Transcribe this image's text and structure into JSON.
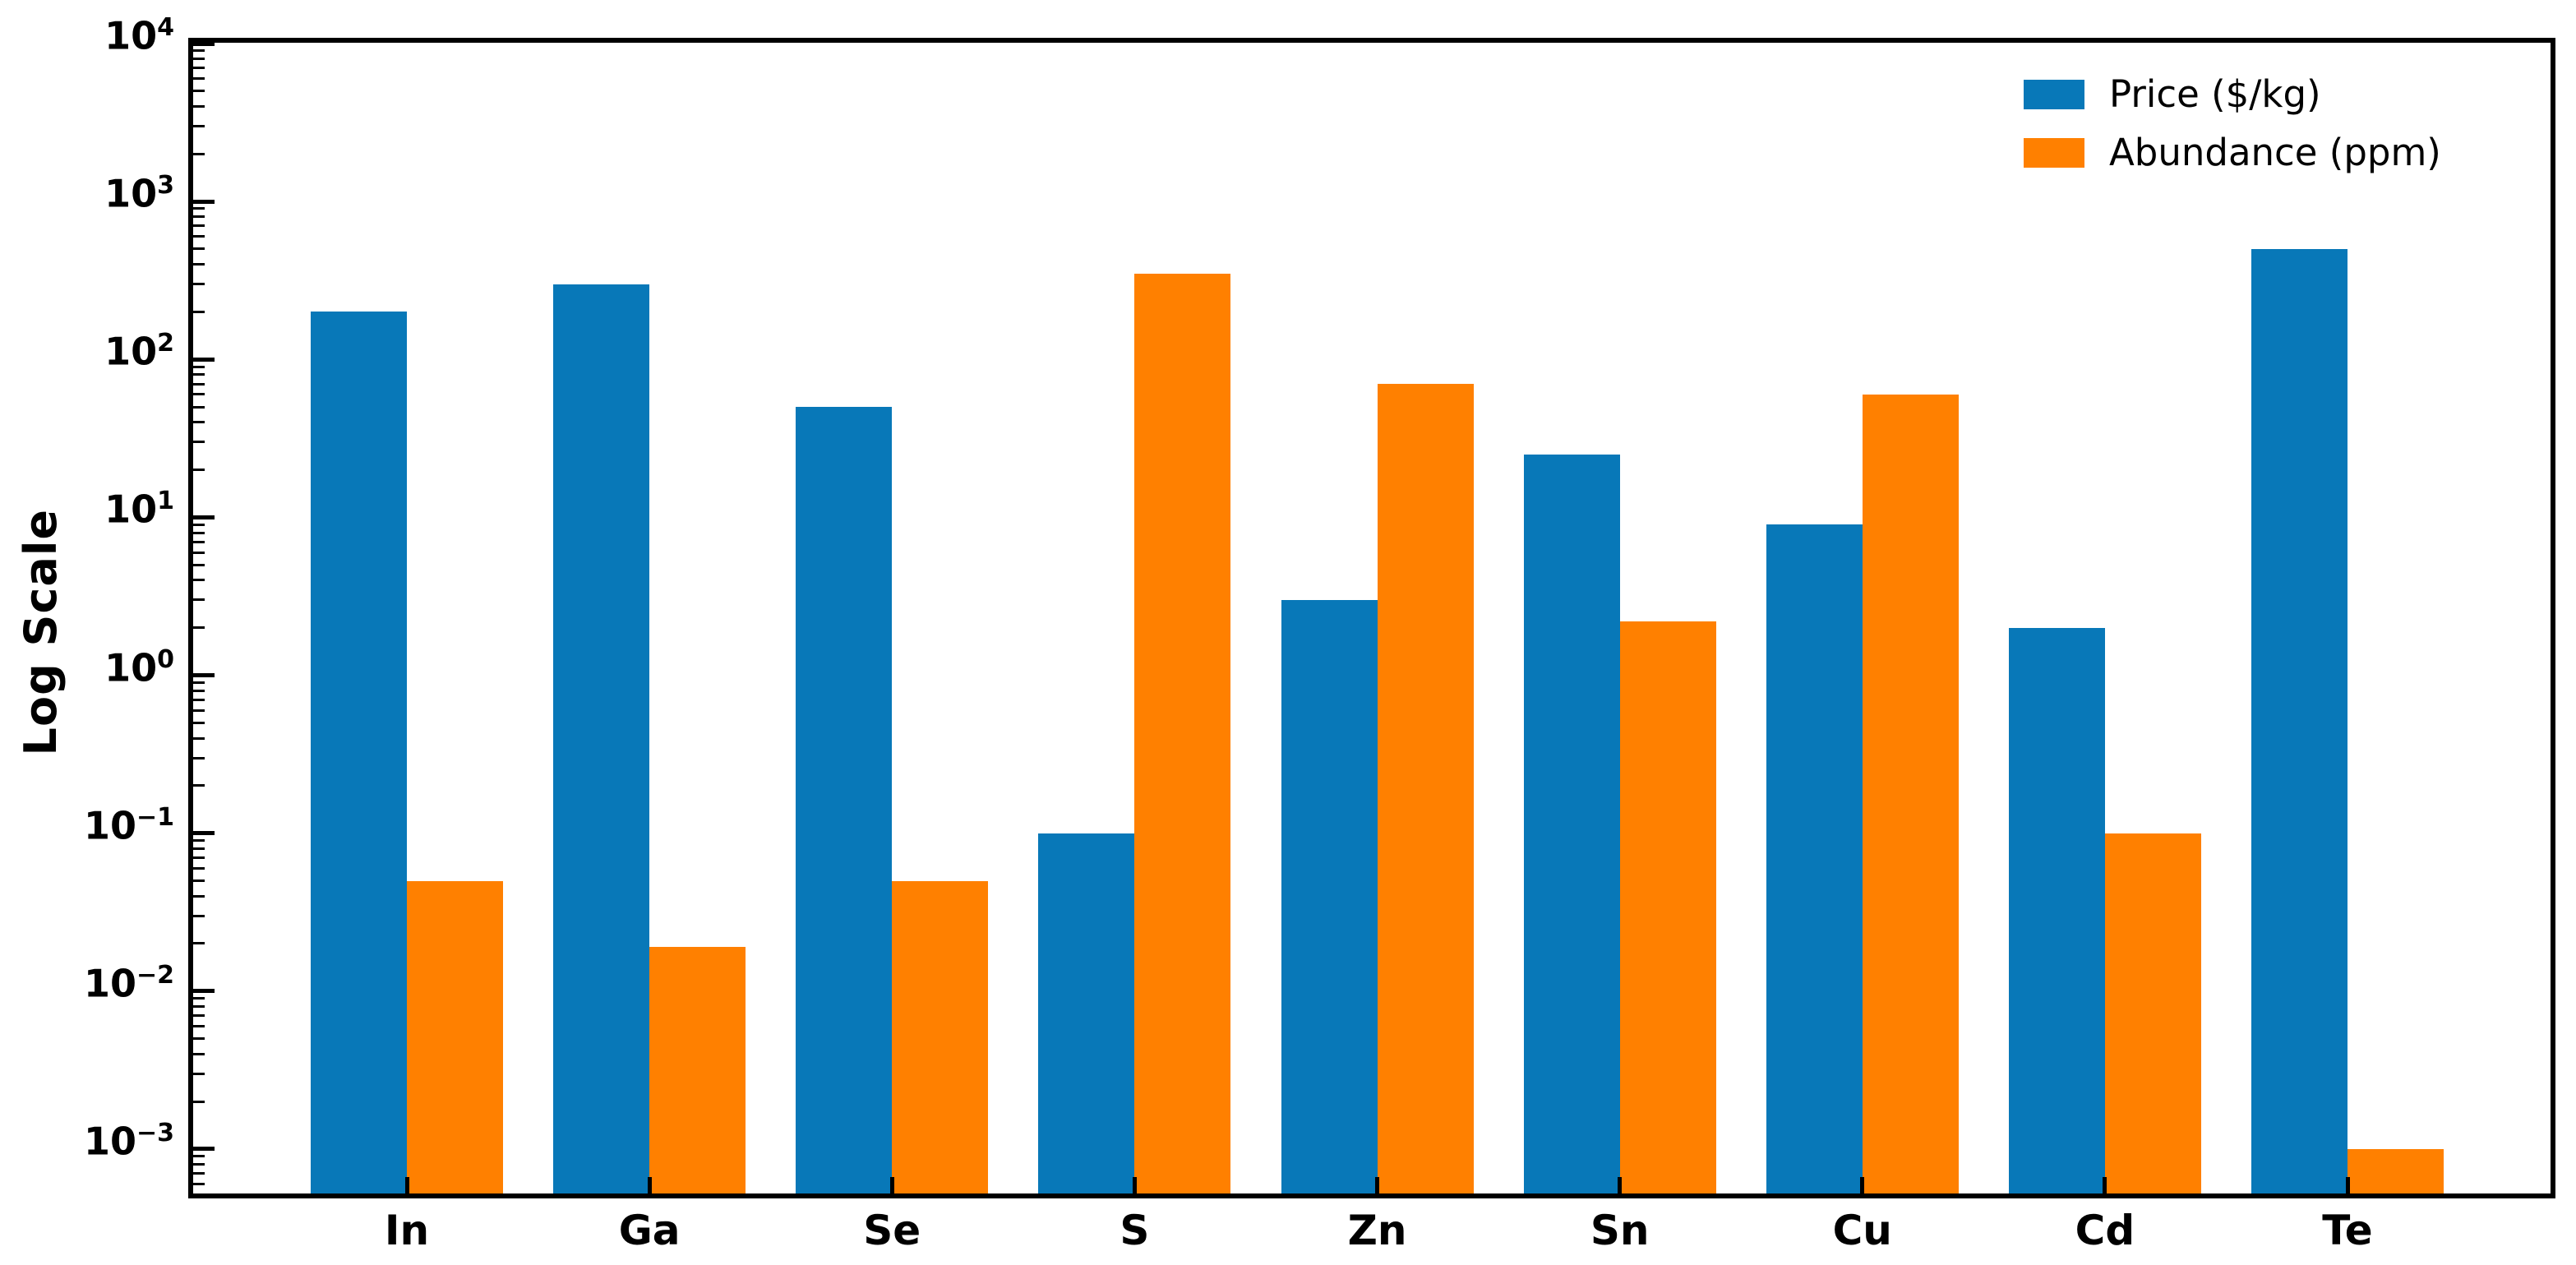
{
  "figure": {
    "background": "#ffffff"
  },
  "chart_data": {
    "type": "bar",
    "title": "",
    "xlabel": "",
    "ylabel": "Log Scale",
    "yscale": "log",
    "ylim": [
      "5.2e-4",
      "1.0e4"
    ],
    "grid": false,
    "legend_position": "upper right",
    "categories": [
      "In",
      "Ga",
      "Se",
      "S",
      "Zn",
      "Sn",
      "Cu",
      "Cd",
      "Te"
    ],
    "series": [
      {
        "name": "Price ($/kg)",
        "color": "#0878b8",
        "values": [
          200,
          300,
          50,
          0.1,
          3,
          25,
          9,
          2,
          500
        ]
      },
      {
        "name": "Abundance (ppm)",
        "color": "#ff8000",
        "values": [
          0.05,
          0.019,
          0.05,
          350,
          70,
          2.2,
          60,
          0.1,
          0.001
        ]
      }
    ],
    "y_ticks": [
      {
        "base": "10",
        "exp": "4",
        "e": 4
      },
      {
        "base": "10",
        "exp": "3",
        "e": 3
      },
      {
        "base": "10",
        "exp": "2",
        "e": 2
      },
      {
        "base": "10",
        "exp": "1",
        "e": 1
      },
      {
        "base": "10",
        "exp": "0",
        "e": 0
      },
      {
        "base": "10",
        "exp": "−1",
        "e": -1
      },
      {
        "base": "10",
        "exp": "−2",
        "e": -2
      },
      {
        "base": "10",
        "exp": "−3",
        "e": -3
      }
    ]
  },
  "legend": {
    "items": [
      {
        "label": "Price ($/kg)",
        "color": "#0878b8"
      },
      {
        "label": "Abundance (ppm)",
        "color": "#ff8000"
      }
    ]
  }
}
